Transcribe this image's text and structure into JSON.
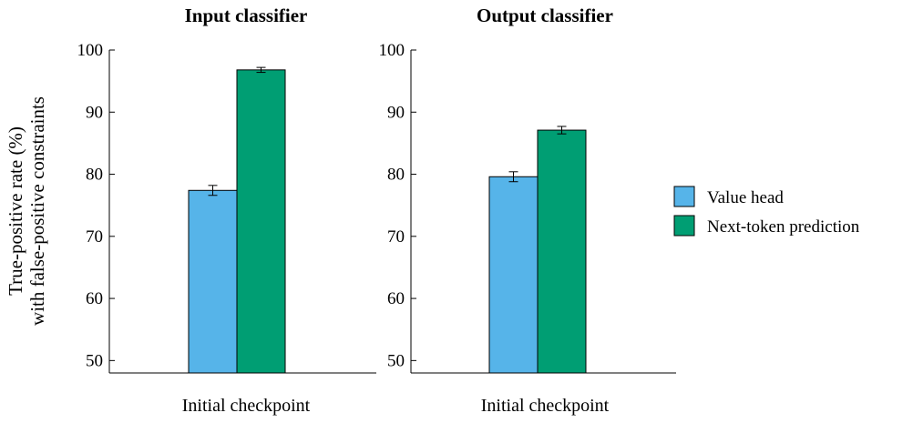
{
  "y_axis_label_line1": "True-positive rate (%)",
  "y_axis_label_line2": "with false-positive constraints",
  "chart_data": [
    {
      "type": "bar",
      "title": "Input classifier",
      "categories": [
        "Initial checkpoint"
      ],
      "ylim": [
        48,
        100
      ],
      "yticks": [
        50,
        60,
        70,
        80,
        90,
        100
      ],
      "series": [
        {
          "name": "Value head",
          "values": [
            77.4
          ],
          "error": [
            0.8
          ],
          "color": "#56b4e9"
        },
        {
          "name": "Next-token prediction",
          "values": [
            96.8
          ],
          "error": [
            0.4
          ],
          "color": "#009e73"
        }
      ],
      "grid": false
    },
    {
      "type": "bar",
      "title": "Output classifier",
      "categories": [
        "Initial checkpoint"
      ],
      "ylim": [
        48,
        100
      ],
      "yticks": [
        50,
        60,
        70,
        80,
        90,
        100
      ],
      "series": [
        {
          "name": "Value head",
          "values": [
            79.6
          ],
          "error": [
            0.8
          ],
          "color": "#56b4e9"
        },
        {
          "name": "Next-token prediction",
          "values": [
            87.1
          ],
          "error": [
            0.6
          ],
          "color": "#009e73"
        }
      ],
      "grid": false
    }
  ],
  "legend": {
    "position": "right",
    "items": [
      {
        "label": "Value head",
        "color": "#56b4e9"
      },
      {
        "label": "Next-token prediction",
        "color": "#009e73"
      }
    ]
  }
}
